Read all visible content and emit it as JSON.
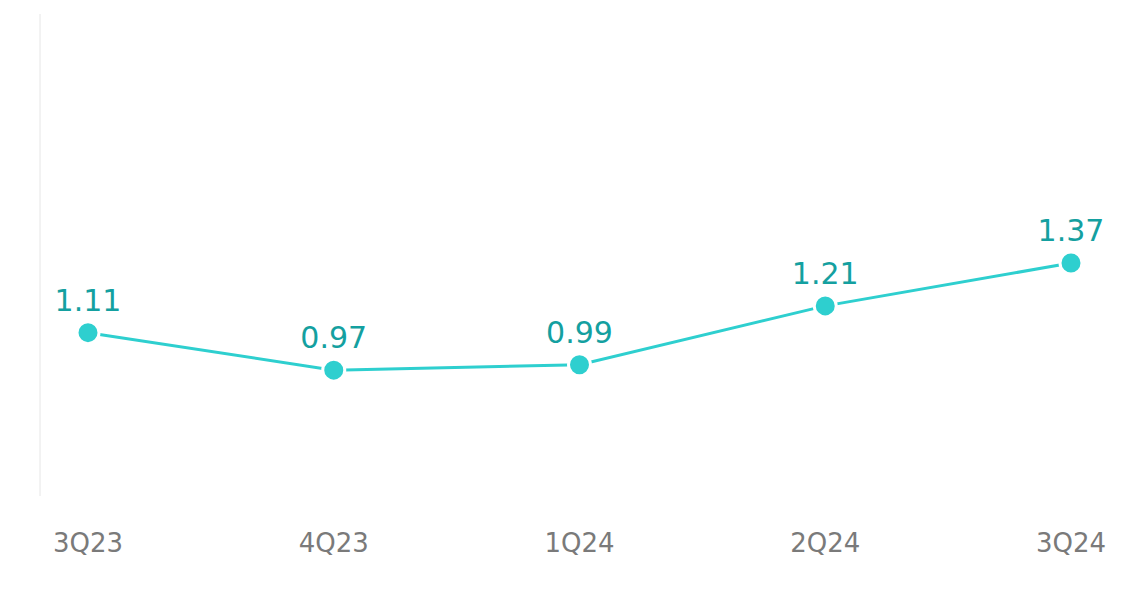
{
  "chart_data": {
    "type": "line",
    "categories": [
      "3Q23",
      "4Q23",
      "1Q24",
      "2Q24",
      "3Q24"
    ],
    "values": [
      1.11,
      0.97,
      0.99,
      1.21,
      1.37
    ],
    "color": "#2ecfcf",
    "marker": "circle",
    "ylim": [
      0.5,
      2.3
    ],
    "yticks": [],
    "grid": false,
    "data_labels": true,
    "tick_labels": "x"
  }
}
